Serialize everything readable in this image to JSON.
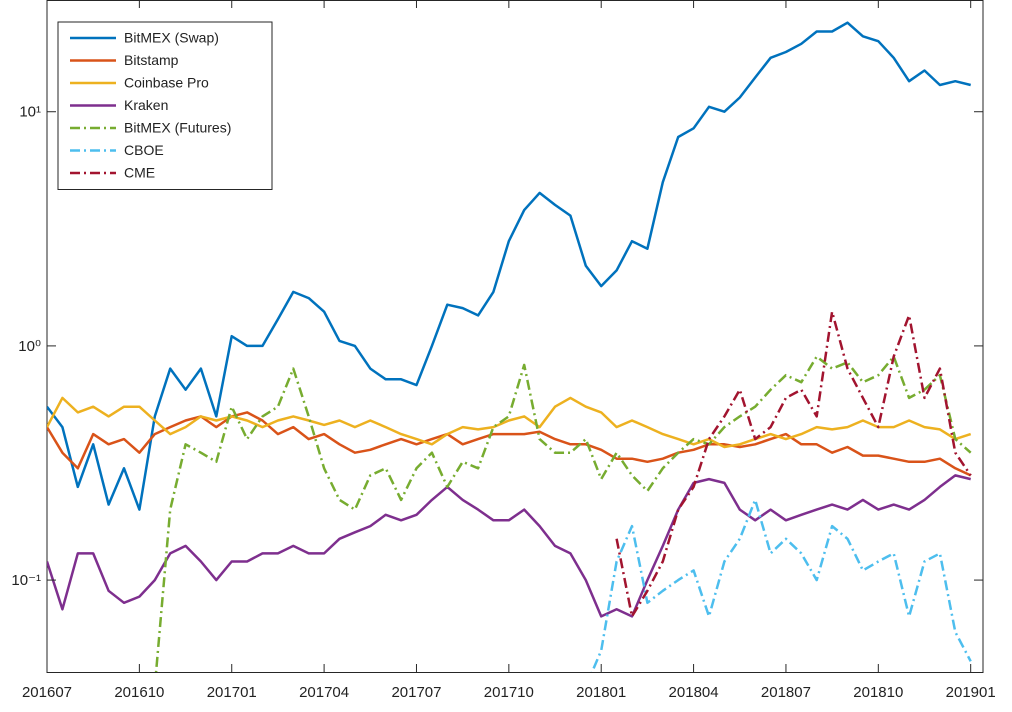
{
  "chart_data": {
    "type": "line",
    "x": [
      0,
      0.5,
      1,
      1.5,
      2,
      2.5,
      3,
      3.5,
      4,
      4.5,
      5,
      5.5,
      6,
      6.5,
      7,
      7.5,
      8,
      8.5,
      9,
      9.5,
      10,
      10.5,
      11,
      11.5,
      12,
      12.5,
      13,
      13.5,
      14,
      14.5,
      15,
      15.5,
      16,
      16.5,
      17,
      17.5,
      18,
      18.5,
      19,
      19.5,
      20,
      20.5,
      21,
      21.5,
      22,
      22.5,
      23,
      23.5,
      24,
      24.5,
      25,
      25.5,
      26,
      26.5,
      27,
      27.5,
      28,
      28.5,
      29,
      29.5,
      30
    ],
    "xlim": [
      0,
      30.4
    ],
    "xticks": [
      {
        "value": 0,
        "label": "201607"
      },
      {
        "value": 3,
        "label": "201610"
      },
      {
        "value": 6,
        "label": "201701"
      },
      {
        "value": 9,
        "label": "201704"
      },
      {
        "value": 12,
        "label": "201707"
      },
      {
        "value": 15,
        "label": "201710"
      },
      {
        "value": 18,
        "label": "201801"
      },
      {
        "value": 21,
        "label": "201804"
      },
      {
        "value": 24,
        "label": "201807"
      },
      {
        "value": 27,
        "label": "201810"
      },
      {
        "value": 30,
        "label": "201901"
      }
    ],
    "ylim": [
      0.0405,
      30
    ],
    "yticks": [
      {
        "value": 0.1,
        "label": "10⁻¹"
      },
      {
        "value": 1,
        "label": "10⁰"
      },
      {
        "value": 10,
        "label": "10¹"
      }
    ],
    "log_scale": "y",
    "grid": false,
    "legend": "upper left",
    "series": [
      {
        "name": "BitMEX (Swap)",
        "color": "#0072bd",
        "style": "solid",
        "values": [
          0.55,
          0.45,
          0.25,
          0.38,
          0.21,
          0.3,
          0.2,
          0.5,
          0.8,
          0.65,
          0.8,
          0.5,
          1.1,
          1.0,
          1.0,
          1.3,
          1.7,
          1.6,
          1.4,
          1.05,
          1.0,
          0.8,
          0.72,
          0.72,
          0.68,
          1.0,
          1.5,
          1.45,
          1.35,
          1.7,
          2.8,
          3.8,
          4.5,
          4.0,
          3.6,
          2.2,
          1.8,
          2.1,
          2.8,
          2.6,
          5.0,
          7.8,
          8.5,
          10.5,
          10.0,
          11.5,
          14,
          17,
          18,
          19.5,
          22,
          22,
          24,
          21,
          20,
          17,
          13.5,
          15,
          13,
          13.5,
          13
        ]
      },
      {
        "name": "Bitstamp",
        "color": "#d95319",
        "style": "solid",
        "values": [
          0.45,
          0.35,
          0.3,
          0.42,
          0.38,
          0.4,
          0.35,
          0.42,
          0.45,
          0.48,
          0.5,
          0.45,
          0.5,
          0.52,
          0.48,
          0.42,
          0.45,
          0.4,
          0.42,
          0.38,
          0.35,
          0.36,
          0.38,
          0.4,
          0.38,
          0.4,
          0.42,
          0.38,
          0.4,
          0.42,
          0.42,
          0.42,
          0.43,
          0.4,
          0.38,
          0.38,
          0.36,
          0.33,
          0.33,
          0.32,
          0.33,
          0.35,
          0.36,
          0.38,
          0.38,
          0.37,
          0.38,
          0.4,
          0.42,
          0.38,
          0.38,
          0.35,
          0.37,
          0.34,
          0.34,
          0.33,
          0.32,
          0.32,
          0.33,
          0.3,
          0.28
        ]
      },
      {
        "name": "Coinbase Pro",
        "color": "#edb120",
        "style": "solid",
        "values": [
          0.45,
          0.6,
          0.52,
          0.55,
          0.5,
          0.55,
          0.55,
          0.48,
          0.42,
          0.45,
          0.5,
          0.48,
          0.5,
          0.48,
          0.45,
          0.48,
          0.5,
          0.48,
          0.46,
          0.48,
          0.45,
          0.48,
          0.45,
          0.42,
          0.4,
          0.38,
          0.42,
          0.45,
          0.44,
          0.45,
          0.48,
          0.5,
          0.45,
          0.55,
          0.6,
          0.55,
          0.52,
          0.45,
          0.48,
          0.45,
          0.42,
          0.4,
          0.38,
          0.4,
          0.37,
          0.38,
          0.4,
          0.42,
          0.4,
          0.42,
          0.45,
          0.44,
          0.45,
          0.48,
          0.45,
          0.45,
          0.48,
          0.45,
          0.44,
          0.4,
          0.42
        ]
      },
      {
        "name": "Kraken",
        "color": "#7e2f8e",
        "style": "solid",
        "values": [
          0.12,
          0.075,
          0.13,
          0.13,
          0.09,
          0.08,
          0.085,
          0.1,
          0.13,
          0.14,
          0.12,
          0.1,
          0.12,
          0.12,
          0.13,
          0.13,
          0.14,
          0.13,
          0.13,
          0.15,
          0.16,
          0.17,
          0.19,
          0.18,
          0.19,
          0.22,
          0.25,
          0.22,
          0.2,
          0.18,
          0.18,
          0.2,
          0.17,
          0.14,
          0.13,
          0.1,
          0.07,
          0.075,
          0.07,
          0.1,
          0.14,
          0.2,
          0.26,
          0.27,
          0.26,
          0.2,
          0.18,
          0.2,
          0.18,
          0.19,
          0.2,
          0.21,
          0.2,
          0.22,
          0.2,
          0.21,
          0.2,
          0.22,
          0.25,
          0.28,
          0.27
        ]
      },
      {
        "name": "BitMEX (Futures)",
        "color": "#77ac30",
        "style": "dashdot",
        "values": [
          null,
          null,
          null,
          null,
          null,
          null,
          null,
          0.035,
          0.2,
          0.38,
          0.35,
          0.32,
          0.55,
          0.4,
          0.5,
          0.55,
          0.8,
          0.5,
          0.3,
          0.22,
          0.2,
          0.28,
          0.3,
          0.22,
          0.3,
          0.35,
          0.25,
          0.32,
          0.3,
          0.45,
          0.5,
          0.83,
          0.4,
          0.35,
          0.35,
          0.4,
          0.27,
          0.35,
          0.28,
          0.24,
          0.3,
          0.35,
          0.4,
          0.38,
          0.45,
          0.5,
          0.55,
          0.65,
          0.75,
          0.7,
          0.9,
          0.8,
          0.85,
          0.7,
          0.75,
          0.9,
          0.6,
          0.65,
          0.75,
          0.4,
          0.35
        ]
      },
      {
        "name": "CBOE",
        "color": "#4dbeee",
        "style": "dashdot",
        "values": [
          null,
          null,
          null,
          null,
          null,
          null,
          null,
          null,
          null,
          null,
          null,
          null,
          null,
          null,
          null,
          null,
          null,
          null,
          null,
          null,
          null,
          null,
          null,
          null,
          null,
          null,
          null,
          null,
          null,
          null,
          null,
          null,
          null,
          null,
          null,
          0.035,
          0.05,
          0.12,
          0.17,
          0.08,
          0.09,
          0.1,
          0.11,
          0.07,
          0.12,
          0.15,
          0.22,
          0.13,
          0.15,
          0.13,
          0.1,
          0.17,
          0.15,
          0.11,
          0.12,
          0.13,
          0.07,
          0.12,
          0.13,
          0.06,
          0.045
        ]
      },
      {
        "name": "CME",
        "color": "#a2142f",
        "style": "dashdot",
        "values": [
          null,
          null,
          null,
          null,
          null,
          null,
          null,
          null,
          null,
          null,
          null,
          null,
          null,
          null,
          null,
          null,
          null,
          null,
          null,
          null,
          null,
          null,
          null,
          null,
          null,
          null,
          null,
          null,
          null,
          null,
          null,
          null,
          null,
          null,
          null,
          null,
          null,
          0.15,
          0.07,
          0.09,
          0.12,
          0.2,
          0.25,
          0.4,
          0.5,
          0.65,
          0.4,
          0.45,
          0.6,
          0.65,
          0.5,
          1.4,
          0.8,
          0.6,
          0.45,
          0.9,
          1.35,
          0.6,
          0.8,
          0.35,
          0.28
        ]
      }
    ]
  }
}
